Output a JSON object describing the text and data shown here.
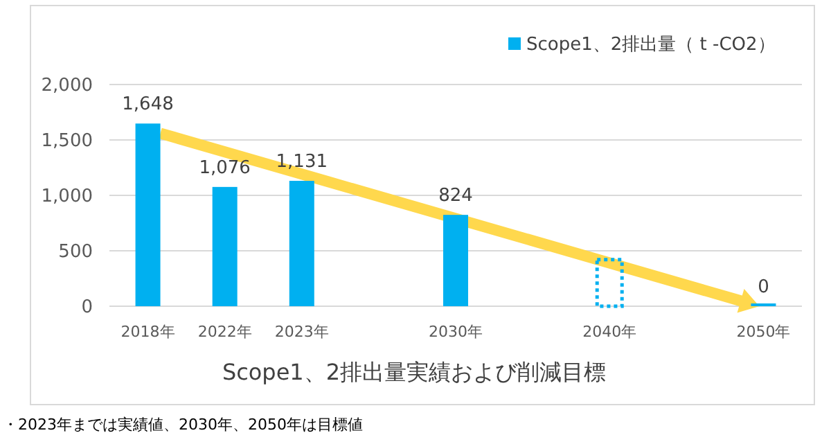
{
  "chart_data": {
    "type": "bar",
    "title": "Scope1、2排出量実績および削減目標",
    "categories": [
      "2018年",
      "2022年",
      "2023年",
      null,
      "2030年",
      null,
      "2040年",
      null,
      "2050年"
    ],
    "series": [
      {
        "name": "Scope1、2排出量（ t -CO2）",
        "color": "#00b0f0",
        "values": [
          1648,
          1076,
          1131,
          null,
          824,
          null,
          null,
          null,
          0
        ],
        "value_labels": [
          "1,648",
          "1,076",
          "1,131",
          null,
          "824",
          null,
          null,
          null,
          "0"
        ]
      },
      {
        "color": "#00b0f0",
        "line_style": "dotted",
        "values": [
          null,
          null,
          null,
          null,
          null,
          null,
          420,
          null,
          null
        ]
      }
    ],
    "ylim": [
      0,
      2000
    ],
    "yticks": [
      0,
      {
        "value": 500,
        "label": "500"
      },
      {
        "value": 1000,
        "label": "1,000"
      },
      {
        "value": 1500,
        "label": "1,500"
      },
      {
        "value": 2000,
        "label": "2,000"
      }
    ],
    "grid": "y",
    "legend": "top right",
    "annotations": [
      "・2023年までは実績値、2030年、2050年は目標値"
    ]
  }
}
